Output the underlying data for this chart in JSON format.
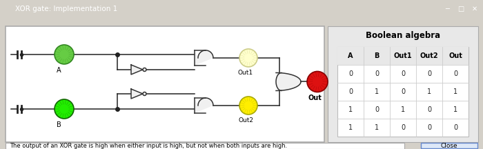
{
  "title": "XOR gate: Implementation 1",
  "caption": "The output of an XOR gate is high when either input is high, but not when both inputs are high.",
  "bool_title": "Boolean algebra",
  "table_headers": [
    "A",
    "B",
    "Out1",
    "Out2",
    "Out"
  ],
  "table_data": [
    [
      0,
      0,
      0,
      0,
      0
    ],
    [
      0,
      1,
      0,
      1,
      1
    ],
    [
      1,
      0,
      1,
      0,
      1
    ],
    [
      1,
      1,
      0,
      0,
      0
    ]
  ],
  "led_A_color": "#66cc44",
  "led_A_edge": "#338822",
  "led_B_color": "#22ee00",
  "led_B_edge": "#116600",
  "led_out1_color": "#ffffcc",
  "led_out1_edge": "#cccc88",
  "led_out2_color": "#ffee00",
  "led_out2_edge": "#aaaa00",
  "led_out_color": "#dd1111",
  "led_out_edge": "#880000",
  "wire_color": "#222222",
  "gate_edge": "#333333",
  "gate_face": "#f0f0f0",
  "bg_outer": "#d4d0c8",
  "bg_circuit": "#ffffff",
  "bg_right": "#e8e8e8",
  "titlebar_color": "#0055aa",
  "title_text_color": "#ffffff"
}
